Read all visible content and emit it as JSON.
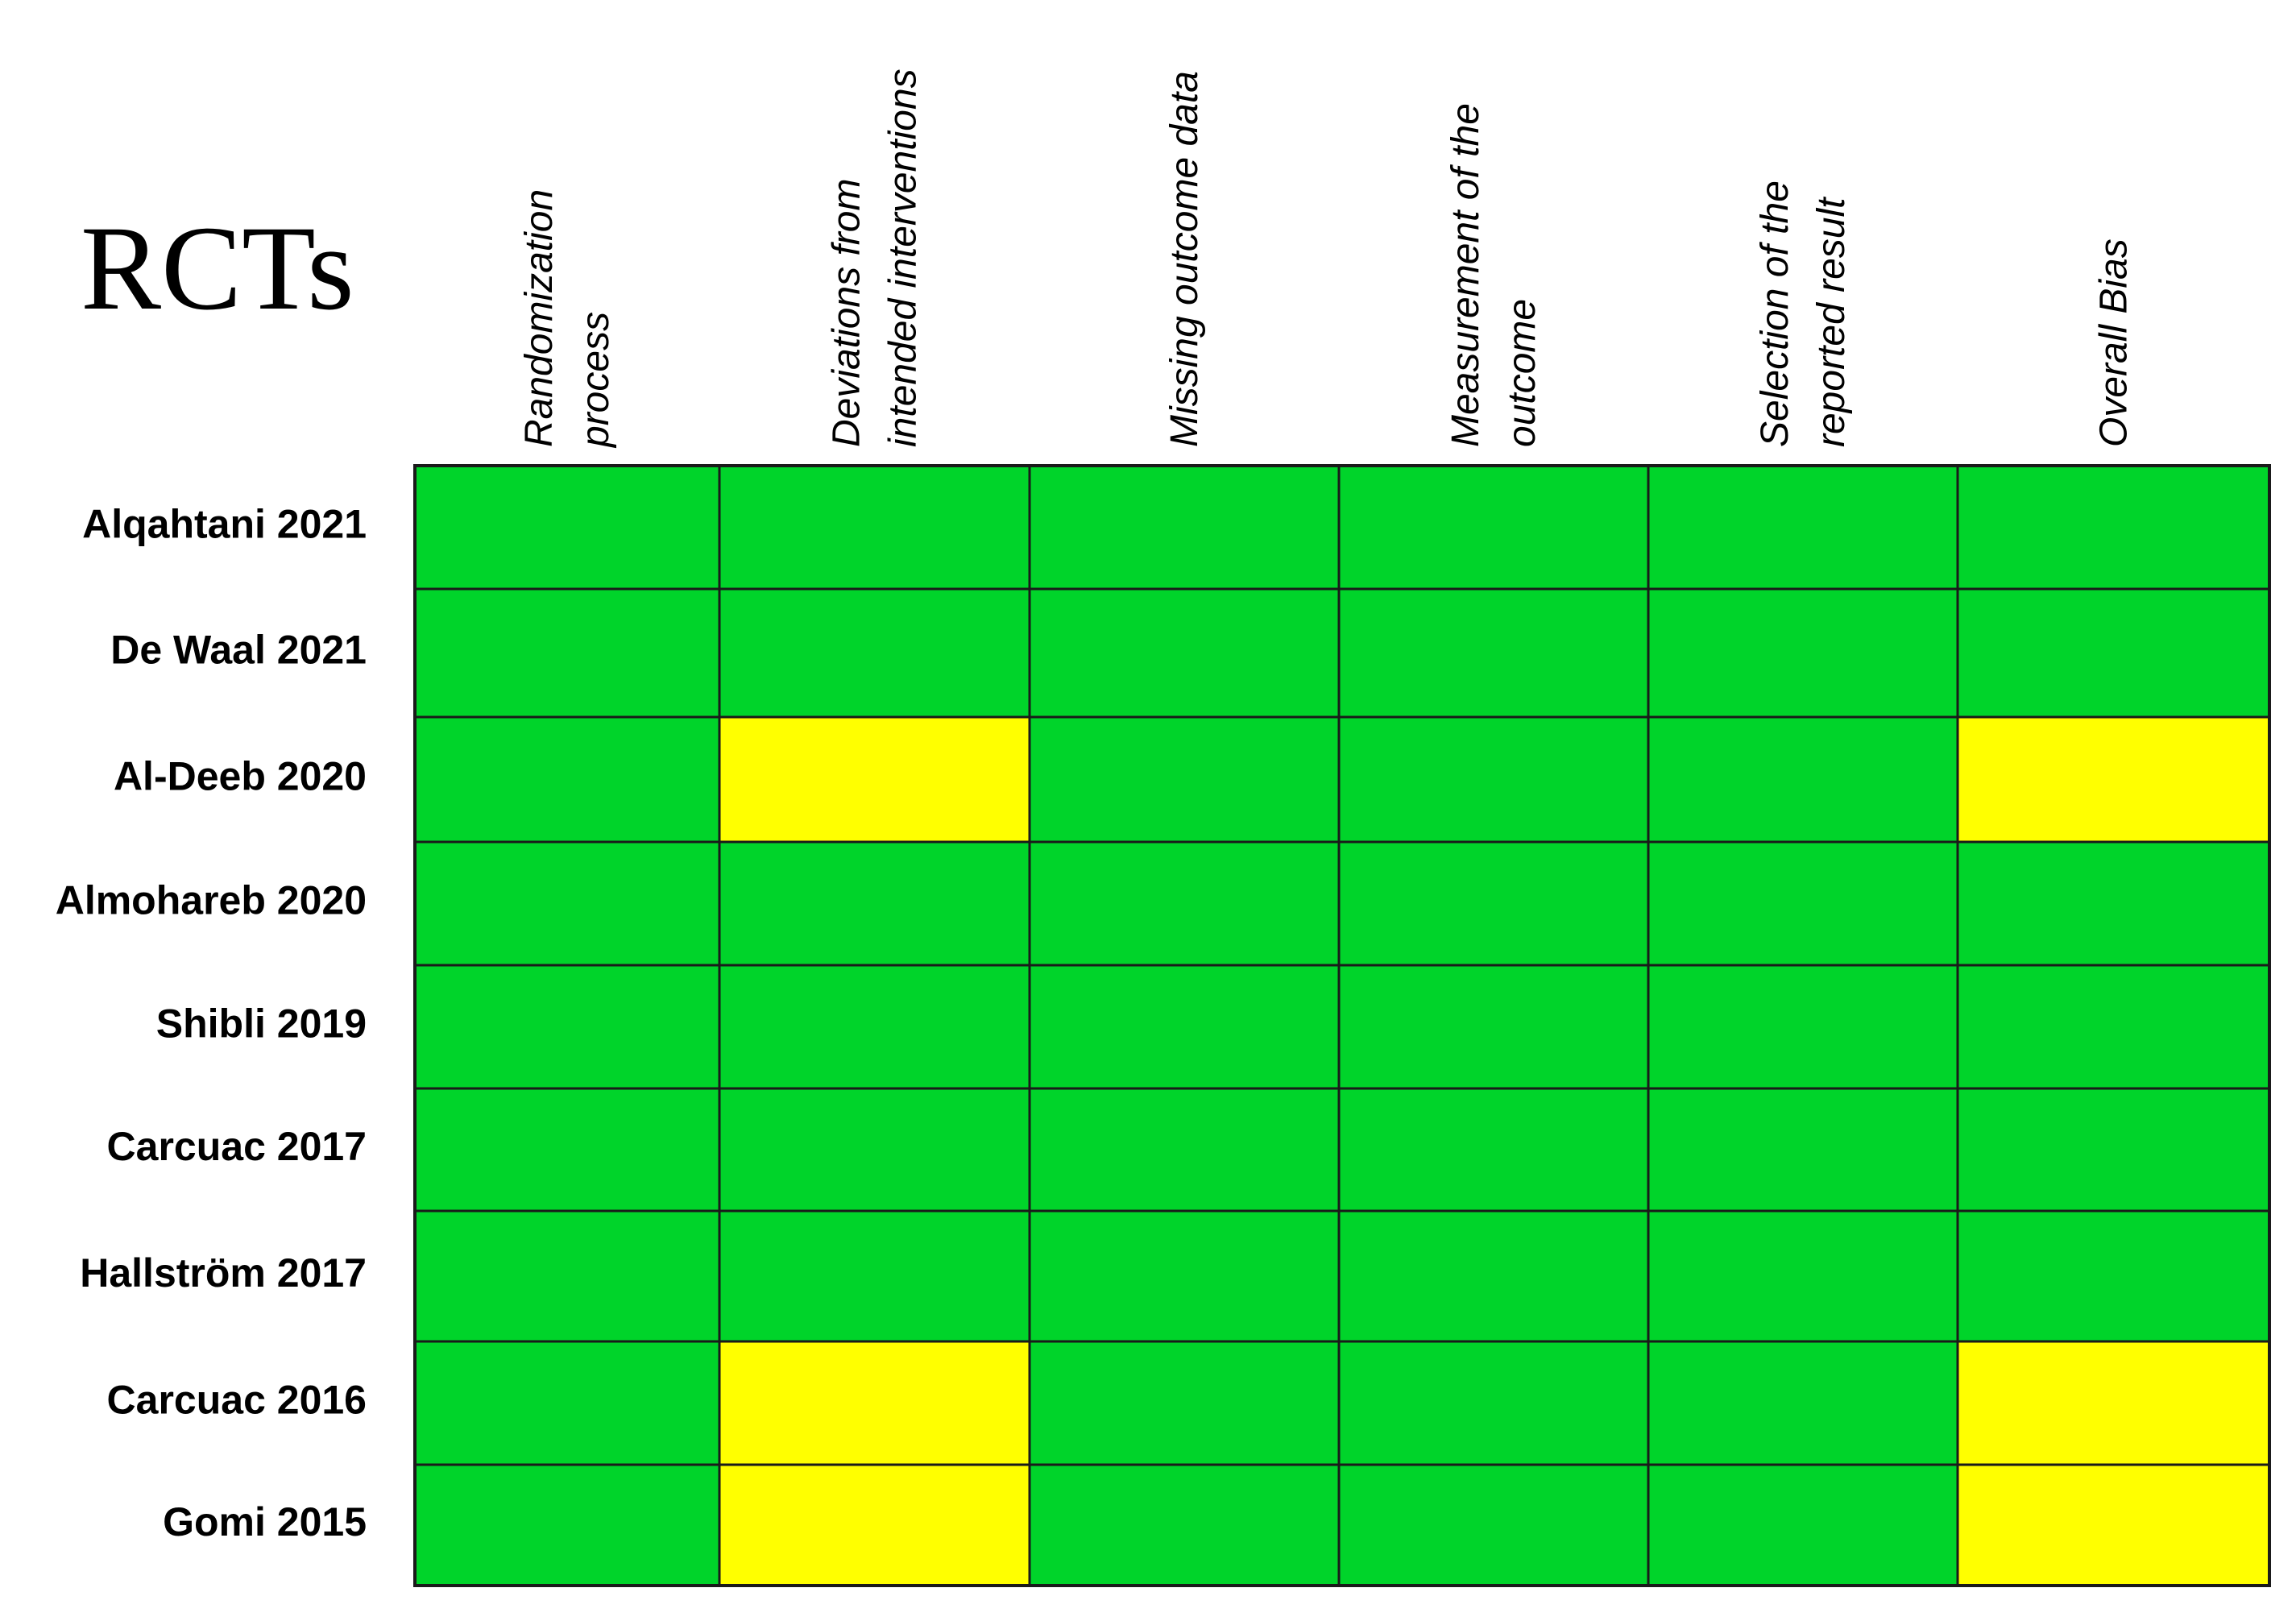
{
  "chart_data": {
    "type": "heatmap",
    "title": "RCTs",
    "columns": [
      [
        "Randomization",
        "process"
      ],
      [
        "Deviations from",
        "intended interventions"
      ],
      [
        "Missing outcome data"
      ],
      [
        "Measurement of the",
        "outcome"
      ],
      [
        "Selection of the",
        "reported result"
      ],
      [
        "Overall Bias"
      ]
    ],
    "rows": [
      "Alqahtani 2021",
      "De Waal 2021",
      "Al-Deeb 2020",
      "Almohareb 2020",
      "Shibli 2019",
      "Carcuac 2017",
      "Hallström 2017",
      "Carcuac 2016",
      "Gomi 2015"
    ],
    "values": [
      [
        "low",
        "low",
        "low",
        "low",
        "low",
        "low"
      ],
      [
        "low",
        "low",
        "low",
        "low",
        "low",
        "low"
      ],
      [
        "low",
        "some",
        "low",
        "low",
        "low",
        "some"
      ],
      [
        "low",
        "low",
        "low",
        "low",
        "low",
        "low"
      ],
      [
        "low",
        "low",
        "low",
        "low",
        "low",
        "low"
      ],
      [
        "low",
        "low",
        "low",
        "low",
        "low",
        "low"
      ],
      [
        "low",
        "low",
        "low",
        "low",
        "low",
        "low"
      ],
      [
        "low",
        "some",
        "low",
        "low",
        "low",
        "some"
      ],
      [
        "low",
        "some",
        "low",
        "low",
        "low",
        "some"
      ]
    ],
    "colors": {
      "low": "#00d42a",
      "some": "#ffff00"
    },
    "legend": "none"
  }
}
